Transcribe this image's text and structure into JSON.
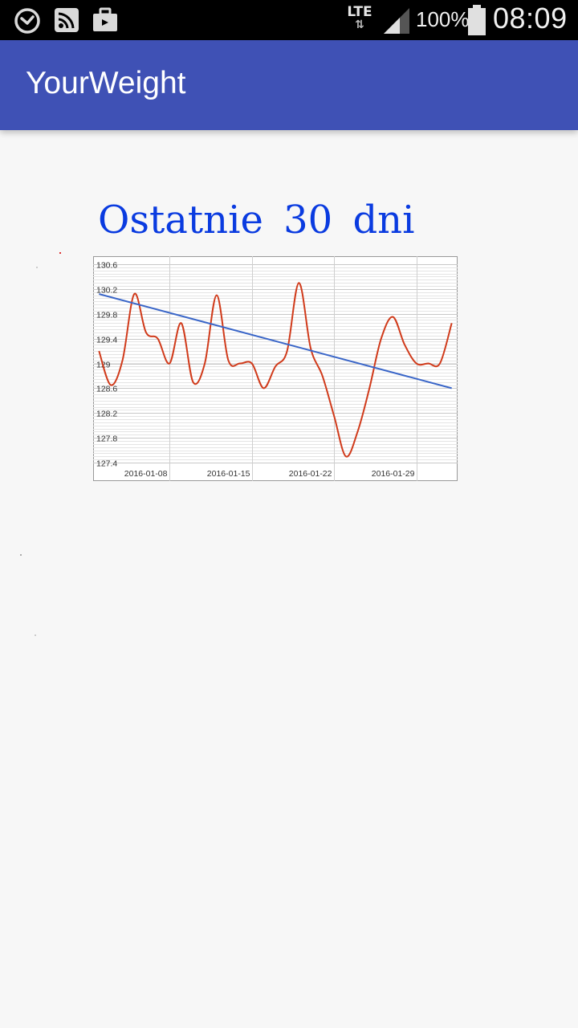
{
  "status_bar": {
    "network": "LTE",
    "battery": "100%",
    "time": "08:09",
    "icons": [
      "alarm-icon",
      "cast-icon",
      "briefcase-icon",
      "signal-icon",
      "battery-icon"
    ]
  },
  "app_bar": {
    "title": "YourWeight",
    "color": "#3f51b5"
  },
  "heading": "Ostatnie  30  dni",
  "chart_data": {
    "type": "line",
    "ylim": [
      127.4,
      130.6
    ],
    "y_ticks": [
      "130.6",
      "130.2",
      "129.8",
      "129.4",
      "129",
      "128.6",
      "128.2",
      "127.8",
      "127.4"
    ],
    "x_ticks": [
      "2016-01-08",
      "2016-01-15",
      "2016-01-22",
      "2016-01-29"
    ],
    "x": [
      1,
      2,
      3,
      4,
      5,
      6,
      7,
      8,
      9,
      10,
      11,
      12,
      13,
      14,
      15,
      16,
      17,
      18,
      19,
      20,
      21,
      22,
      23,
      24,
      25,
      26,
      27,
      28,
      29,
      30,
      31
    ],
    "x_tick_positions": [
      7,
      14,
      21,
      28
    ],
    "grid": true,
    "series": [
      {
        "color": "#d03a1a",
        "values": [
          129.2,
          128.65,
          129.05,
          130.12,
          129.5,
          129.4,
          129.0,
          129.65,
          128.7,
          129.0,
          130.1,
          129.05,
          129.0,
          129.0,
          128.6,
          128.95,
          129.2,
          130.3,
          129.25,
          128.8,
          128.15,
          127.5,
          127.9,
          128.6,
          129.4,
          129.75,
          129.3,
          129.0,
          129.0,
          129.0,
          129.65
        ]
      },
      {
        "color": "#3a66c8",
        "values": [
          130.12,
          128.6
        ],
        "x": [
          1,
          31
        ]
      }
    ]
  }
}
